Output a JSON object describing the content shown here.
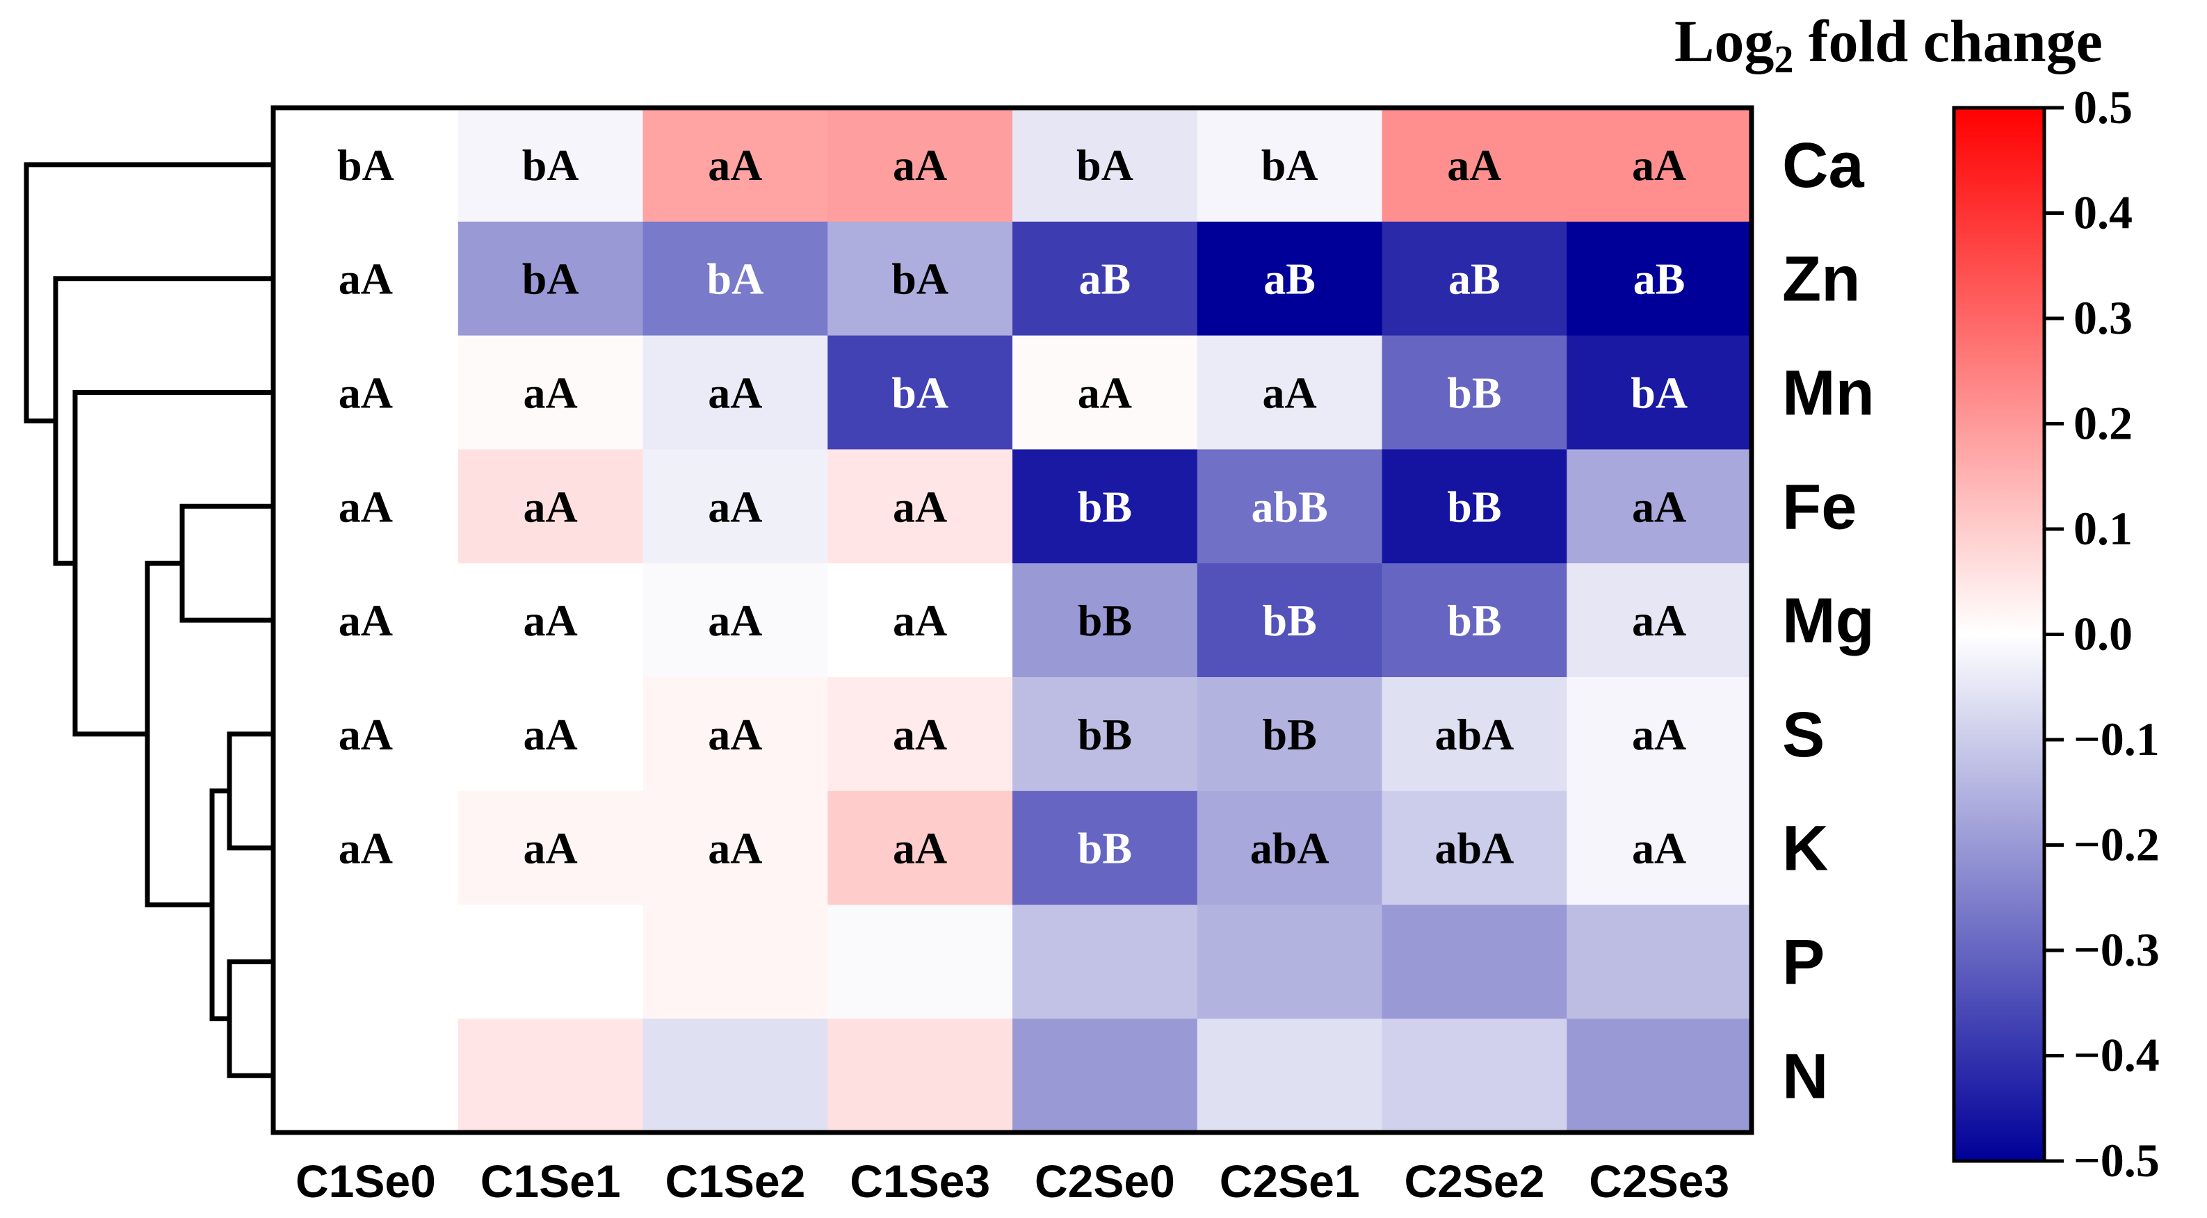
{
  "chart_data": {
    "type": "heatmap",
    "title": "",
    "colorbar": {
      "title_main": "Log",
      "title_sub": "2",
      "title_rest": " fold change",
      "range": [
        -0.5,
        0.5
      ],
      "ticks": [
        0.5,
        0.4,
        0.3,
        0.2,
        0.1,
        0.0,
        -0.1,
        -0.2,
        -0.3,
        -0.4,
        -0.5
      ],
      "tick_labels": [
        "0.5",
        "0.4",
        "0.3",
        "0.2",
        "0.1",
        "0.0",
        "−0.1",
        "−0.2",
        "−0.3",
        "−0.4",
        "−0.5"
      ],
      "colors": {
        "low": "#000099",
        "mid": "#ffffff",
        "high": "#ff0000"
      }
    },
    "columns": [
      "C1Se0",
      "C1Se1",
      "C1Se2",
      "C1Se3",
      "C2Se0",
      "C2Se1",
      "C2Se2",
      "C2Se3"
    ],
    "rows": [
      "Ca",
      "Zn",
      "Mn",
      "Fe",
      "Mg",
      "S",
      "K",
      "P",
      "N"
    ],
    "values": [
      [
        0.0,
        -0.02,
        0.18,
        0.19,
        -0.05,
        -0.02,
        0.22,
        0.22
      ],
      [
        0.0,
        -0.2,
        -0.26,
        -0.16,
        -0.38,
        -0.5,
        -0.42,
        -0.5
      ],
      [
        0.0,
        0.01,
        -0.04,
        -0.37,
        0.01,
        -0.04,
        -0.3,
        -0.45
      ],
      [
        0.0,
        0.06,
        -0.03,
        0.05,
        -0.45,
        -0.28,
        -0.46,
        -0.17
      ],
      [
        0.0,
        0.0,
        -0.01,
        0.0,
        -0.2,
        -0.34,
        -0.3,
        -0.05
      ],
      [
        0.0,
        0.0,
        0.02,
        0.04,
        -0.13,
        -0.15,
        -0.06,
        -0.02
      ],
      [
        0.0,
        0.02,
        0.02,
        0.1,
        -0.3,
        -0.17,
        -0.1,
        -0.02
      ],
      [
        0.0,
        0.0,
        0.02,
        -0.01,
        -0.12,
        -0.15,
        -0.2,
        -0.13
      ],
      [
        0.0,
        0.05,
        -0.06,
        0.06,
        -0.2,
        -0.06,
        -0.09,
        -0.2
      ]
    ],
    "annotations": [
      [
        "bA",
        "bA",
        "aA",
        "aA",
        "bA",
        "bA",
        "aA",
        "aA"
      ],
      [
        "aA",
        "bA",
        "bA",
        "bA",
        "aB",
        "aB",
        "aB",
        "aB"
      ],
      [
        "aA",
        "aA",
        "aA",
        "bA",
        "aA",
        "aA",
        "bB",
        "bA"
      ],
      [
        "aA",
        "aA",
        "aA",
        "aA",
        "bB",
        "abB",
        "bB",
        "aA"
      ],
      [
        "aA",
        "aA",
        "aA",
        "aA",
        "bB",
        "bB",
        "bB",
        "aA"
      ],
      [
        "aA",
        "aA",
        "aA",
        "aA",
        "bB",
        "bB",
        "abA",
        "aA"
      ],
      [
        "aA",
        "aA",
        "aA",
        "aA",
        "bB",
        "abA",
        "abA",
        "aA"
      ],
      [
        "",
        "",
        "",
        "",
        "",
        "",
        "",
        ""
      ],
      [
        "",
        "",
        "",
        "",
        "",
        "",
        "",
        ""
      ]
    ],
    "dendrogram": {
      "side": "left",
      "leaves": [
        "Ca",
        "Zn",
        "Mn",
        "Fe",
        "Mg",
        "S",
        "K",
        "P",
        "N"
      ],
      "merges": [
        [
          "Fe",
          "Mg"
        ],
        [
          "S",
          "K"
        ],
        [
          "P",
          "N"
        ],
        [
          "S+K",
          "P+N"
        ],
        [
          "Fe+Mg",
          "S+K+P+N"
        ],
        [
          "Mn",
          "Fe+Mg+S+K+P+N"
        ],
        [
          "Zn",
          "Mn+Fe+Mg+S+K+P+N"
        ],
        [
          "Ca",
          "Zn+Mn+Fe+Mg+S+K+P+N"
        ]
      ]
    }
  }
}
